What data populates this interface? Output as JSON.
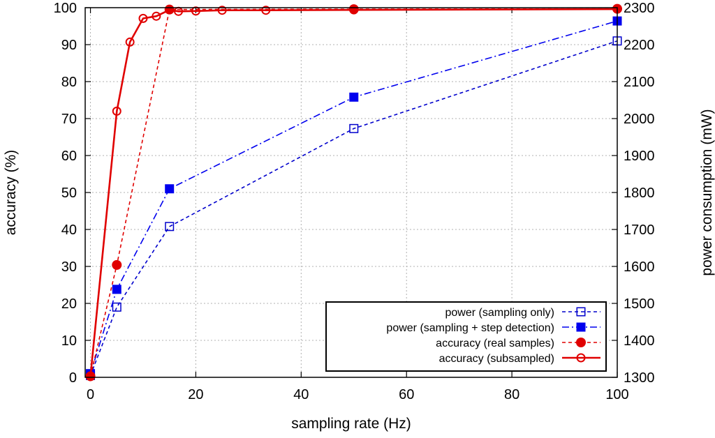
{
  "chart_data": {
    "type": "line",
    "x_axis": {
      "label": "sampling rate (Hz)",
      "range": [
        -1,
        100
      ],
      "ticks": [
        0,
        20,
        40,
        60,
        80,
        100
      ]
    },
    "y_left": {
      "label": "accuracy (%)",
      "range": [
        0,
        100
      ],
      "ticks": [
        0,
        10,
        20,
        30,
        40,
        50,
        60,
        70,
        80,
        90,
        100
      ]
    },
    "y_right": {
      "label": "power consumption (mW)",
      "range": [
        1300,
        2300
      ],
      "ticks": [
        1300,
        1400,
        1500,
        1600,
        1700,
        1800,
        1900,
        2000,
        2100,
        2200,
        2300
      ]
    },
    "grid": true,
    "legend_position": "bottom-right",
    "series": [
      {
        "name": "power (sampling only)",
        "axis": "right",
        "color": "#0000cc",
        "line": "dashed",
        "marker": "open-square",
        "x": [
          0,
          5,
          15,
          50,
          100
        ],
        "y": [
          1305,
          1490,
          1708,
          1973,
          2210
        ]
      },
      {
        "name": "power (sampling + step detection)",
        "axis": "right",
        "color": "#0000ee",
        "line": "dash-dot",
        "marker": "filled-square",
        "x": [
          0,
          5,
          15,
          50,
          100
        ],
        "y": [
          1310,
          1538,
          1810,
          2058,
          2264
        ]
      },
      {
        "name": "accuracy (real samples)",
        "axis": "left",
        "color": "#e00000",
        "line": "dashed",
        "marker": "filled-circle",
        "x": [
          0,
          5,
          15,
          50,
          100
        ],
        "y": [
          0.3,
          30.4,
          99.5,
          99.6,
          99.7
        ]
      },
      {
        "name": "accuracy (subsampled)",
        "axis": "left",
        "color": "#e00000",
        "line": "solid",
        "marker": "open-circle",
        "x": [
          0,
          5,
          7.5,
          10,
          12.5,
          15,
          16.7,
          20,
          25,
          33.3,
          50,
          100
        ],
        "y": [
          0.2,
          72.0,
          90.7,
          97.1,
          97.7,
          99.4,
          99.0,
          99.1,
          99.3,
          99.3,
          99.4,
          99.6
        ]
      }
    ]
  }
}
